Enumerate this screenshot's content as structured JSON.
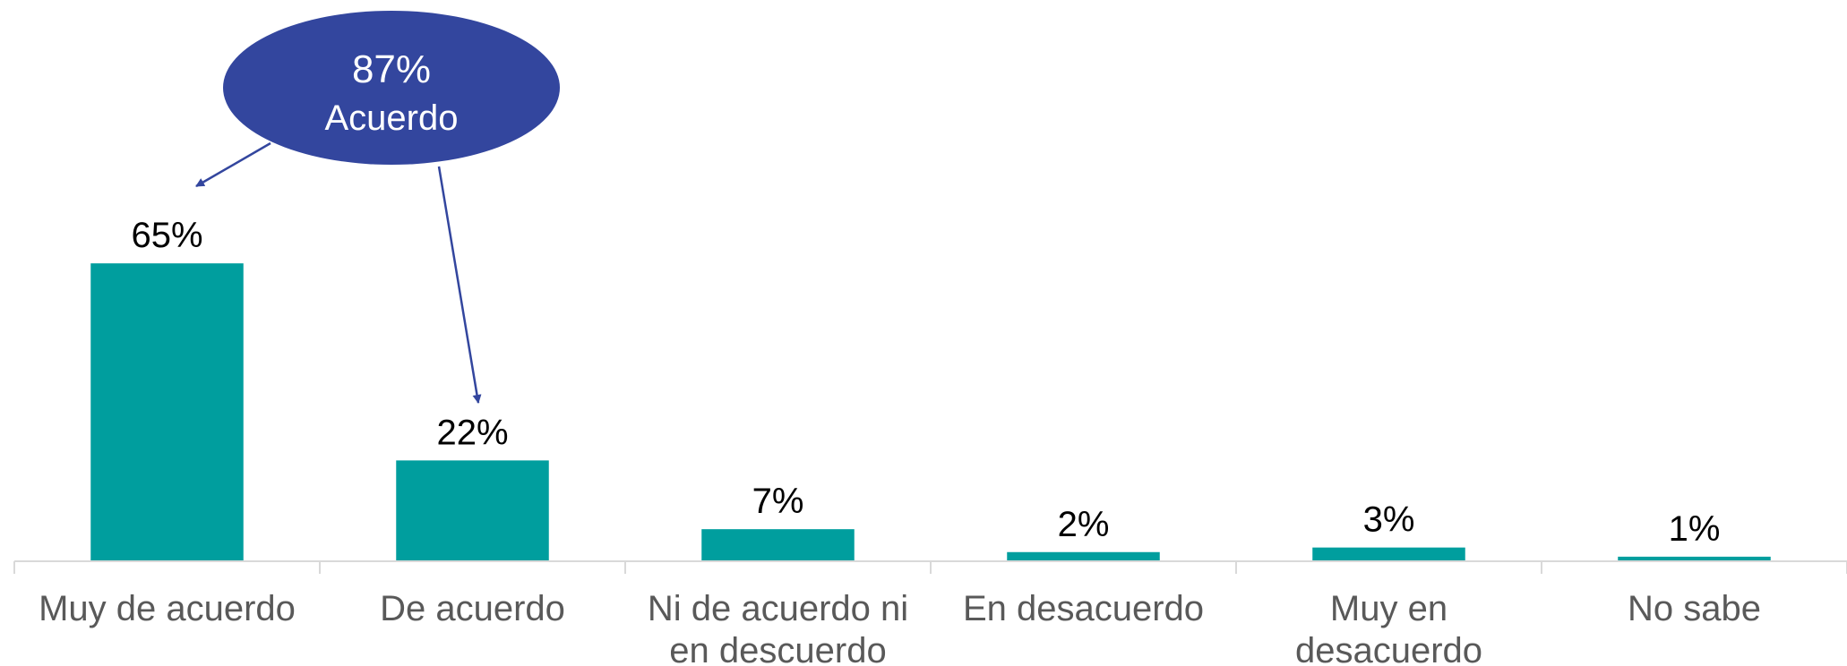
{
  "chart_data": {
    "type": "bar",
    "categories": [
      [
        "Muy de acuerdo"
      ],
      [
        "De acuerdo"
      ],
      [
        "Ni de acuerdo ni",
        "en descuerdo"
      ],
      [
        "En desacuerdo"
      ],
      [
        "Muy en",
        "desacuerdo"
      ],
      [
        "No sabe"
      ]
    ],
    "values": [
      65,
      22,
      7,
      2,
      3,
      1
    ],
    "value_labels": [
      "65%",
      "22%",
      "7%",
      "2%",
      "3%",
      "1%"
    ],
    "unit": "%",
    "ylim": [
      0,
      100
    ],
    "grid": false,
    "legend": "none",
    "colors": {
      "bar": "#009E9E",
      "callout": "#33469E",
      "axis": "#D9D9D9",
      "category_text": "#595959"
    },
    "annotation": {
      "value": "87%",
      "label": "Acuerdo",
      "refers_to_categories": [
        0,
        1
      ]
    }
  }
}
